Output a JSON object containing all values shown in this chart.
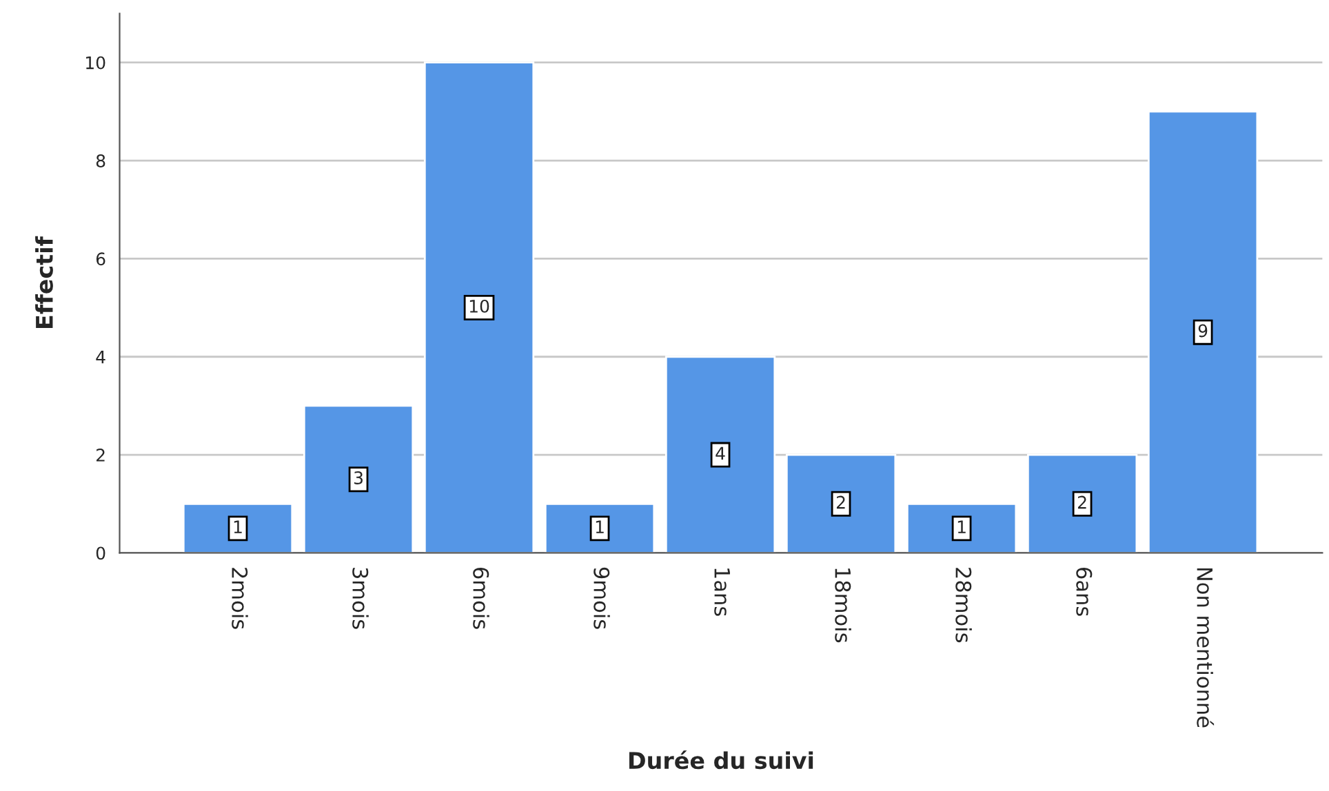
{
  "chart_data": {
    "type": "bar",
    "xlabel": "Durée du suivi",
    "ylabel": "Effectif",
    "categories": [
      "2mois",
      "3mois",
      "6mois",
      "9mois",
      "1ans",
      "18mois",
      "28mois",
      "6ans",
      "Non mentionné"
    ],
    "values": [
      1,
      3,
      10,
      1,
      4,
      2,
      1,
      2,
      9
    ],
    "color": "#5596e6",
    "ylim": [
      0,
      11
    ],
    "yticks": [
      0,
      2,
      4,
      6,
      8,
      10
    ],
    "grid": "y",
    "data_labels": true
  }
}
